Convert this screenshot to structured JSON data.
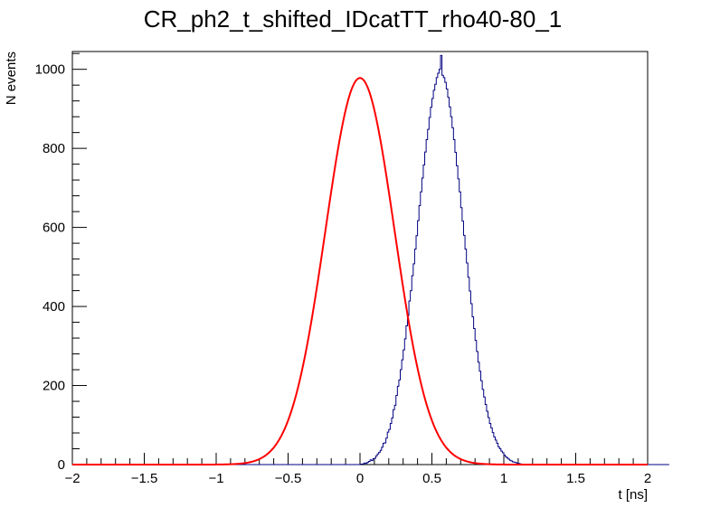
{
  "chart_data": {
    "type": "histogram",
    "title": "CR_ph2_t_shifted_IDcatTT_rho40-80_1",
    "xlabel": "t [ns]",
    "ylabel": "N events",
    "xlim": [
      -2,
      2
    ],
    "ylim": [
      0,
      1045
    ],
    "x_major_ticks": [
      -2,
      -1.5,
      -1,
      -0.5,
      0,
      0.5,
      1,
      1.5,
      2
    ],
    "x_tick_labels": [
      "−2",
      "−1.5",
      "−1",
      "−0.5",
      "0",
      "0.5",
      "1",
      "1.5",
      "2"
    ],
    "y_major_ticks": [
      0,
      200,
      400,
      600,
      800,
      1000
    ],
    "y_tick_labels": [
      "0",
      "200",
      "400",
      "600",
      "800",
      "1000"
    ],
    "grid": false,
    "histogram": {
      "color": "#000080",
      "bin_width": 0.01,
      "x_start": -2,
      "bin_counts": [
        0,
        0,
        0,
        0,
        0,
        0,
        0,
        0,
        0,
        0,
        0,
        0,
        0,
        0,
        0,
        0,
        0,
        0,
        0,
        0,
        0,
        0,
        0,
        0,
        0,
        0,
        0,
        0,
        0,
        0,
        0,
        0,
        0,
        0,
        0,
        0,
        0,
        0,
        0,
        0,
        0,
        0,
        0,
        0,
        0,
        0,
        0,
        0,
        0,
        0,
        0,
        0,
        0,
        0,
        0,
        0,
        0,
        0,
        0,
        0,
        0,
        0,
        0,
        0,
        0,
        0,
        0,
        0,
        0,
        0,
        0,
        0,
        0,
        0,
        0,
        0,
        0,
        0,
        0,
        0,
        0,
        0,
        0,
        0,
        0,
        0,
        0,
        0,
        0,
        0,
        0,
        0,
        0,
        0,
        0,
        0,
        0,
        0,
        0,
        0,
        0,
        0,
        0,
        0,
        0,
        0,
        0,
        0,
        0,
        0,
        0,
        0,
        0,
        0,
        0,
        0,
        0,
        0,
        0,
        0,
        0,
        0,
        0,
        0,
        0,
        0,
        0,
        0,
        0,
        0,
        0,
        0,
        0,
        0,
        0,
        0,
        0,
        0,
        0,
        0,
        0,
        0,
        0,
        0,
        0,
        0,
        0,
        0,
        0,
        0,
        0,
        0,
        0,
        0,
        0,
        0,
        0,
        0,
        0,
        0,
        0,
        0,
        0,
        0,
        0,
        0,
        0,
        0,
        0,
        0,
        0,
        0,
        0,
        0,
        0,
        0,
        0,
        0,
        0,
        0,
        0,
        0,
        0,
        0,
        0,
        0,
        0,
        0,
        0,
        0,
        0,
        0,
        0,
        0,
        0,
        0,
        0,
        0,
        0,
        0,
        1,
        1,
        2,
        4,
        3,
        6,
        8,
        12,
        10,
        15,
        16,
        22,
        27,
        31,
        36,
        44,
        54,
        55,
        67,
        82,
        89,
        104,
        118,
        139,
        150,
        175,
        198,
        214,
        240,
        265,
        290,
        318,
        351,
        377,
        414,
        440,
        478,
        508,
        545,
        579,
        617,
        655,
        690,
        725,
        758,
        791,
        822,
        848,
        878,
        904,
        926,
        947,
        962,
        979,
        990,
        1000,
        1035,
        985,
        979,
        967,
        950,
        929,
        905,
        880,
        852,
        822,
        790,
        756,
        723,
        690,
        650,
        616,
        580,
        545,
        510,
        474,
        439,
        407,
        374,
        344,
        314,
        286,
        259,
        236,
        212,
        190,
        171,
        152,
        135,
        119,
        104,
        93,
        81,
        70,
        62,
        54,
        45,
        40,
        34,
        30,
        24,
        20,
        17,
        14,
        11,
        9,
        7,
        6,
        5,
        3,
        3,
        2,
        1,
        1,
        1,
        0,
        0,
        0,
        0,
        0,
        0,
        0,
        0,
        0,
        0,
        0,
        0,
        0,
        0,
        0,
        0,
        0,
        0,
        0,
        0,
        0,
        0,
        0,
        0,
        0,
        0,
        0,
        0,
        0,
        0,
        0,
        0,
        0,
        0,
        0,
        0,
        0,
        0,
        0,
        0,
        0,
        0,
        0,
        0,
        0,
        0,
        0,
        0,
        0,
        0,
        0,
        0,
        0,
        0,
        0,
        0,
        0,
        0,
        0,
        0,
        0,
        0,
        0,
        0,
        0,
        0,
        0,
        0,
        0,
        0,
        0,
        0,
        0,
        0,
        0,
        0,
        0,
        0,
        0,
        0,
        0,
        0,
        0,
        0,
        0,
        0,
        0,
        0,
        0,
        0,
        0,
        0,
        0,
        0,
        0,
        0,
        0,
        0,
        0,
        0
      ]
    },
    "fit": {
      "type": "gaussian",
      "color": "#ff0000",
      "amplitude": 978,
      "mean": 0.0,
      "sigma": 0.24
    }
  }
}
